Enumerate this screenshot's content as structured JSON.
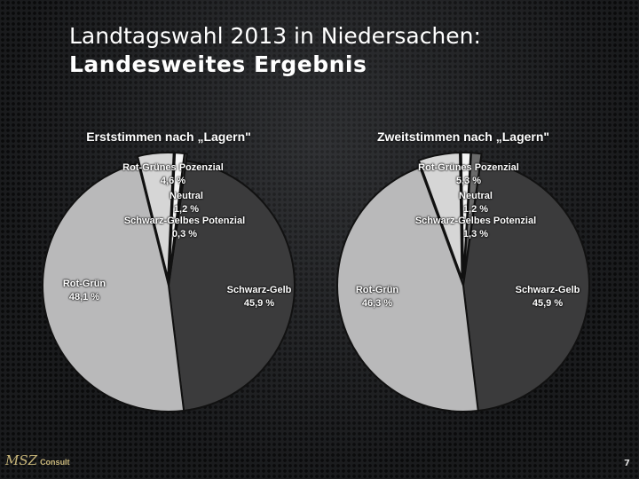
{
  "title_line1": "Landtagswahl 2013 in Niedersachen:",
  "title_line2": "Landesweites Ergebnis",
  "chart_data": [
    {
      "type": "pie",
      "title": "Erststimmen nach „Lagern\"",
      "slices": [
        {
          "label": "Schwarz-Gelb",
          "value": 45.9,
          "value_label": "45,9 %",
          "color": "#3b3b3c"
        },
        {
          "label": "Rot-Grün",
          "value": 48.1,
          "value_label": "48,1 %",
          "color": "#b9b9ba"
        },
        {
          "label": "Rot-Grünes Pozenzial",
          "value": 4.6,
          "value_label": "4,6 %",
          "color": "#d6d6d6"
        },
        {
          "label": "Neutral",
          "value": 1.2,
          "value_label": "1,2 %",
          "color": "#f4f4f4"
        },
        {
          "label": "Schwarz-Gelbes Potenzial",
          "value": 0.3,
          "value_label": "0,3 %",
          "color": "#6a6a6a"
        }
      ]
    },
    {
      "type": "pie",
      "title": "Zweitstimmen nach „Lagern\"",
      "slices": [
        {
          "label": "Schwarz-Gelb",
          "value": 45.9,
          "value_label": "45,9 %",
          "color": "#3b3b3c"
        },
        {
          "label": "Rot-Grün",
          "value": 46.3,
          "value_label": "46,3 %",
          "color": "#b9b9ba"
        },
        {
          "label": "Rot-Grünes Pozenzial",
          "value": 5.3,
          "value_label": "5,3 %",
          "color": "#d6d6d6"
        },
        {
          "label": "Neutral",
          "value": 1.2,
          "value_label": "1,2 %",
          "color": "#f4f4f4"
        },
        {
          "label": "Schwarz-Gelbes Potenzial",
          "value": 1.3,
          "value_label": "1,3 %",
          "color": "#6a6a6a"
        }
      ]
    }
  ],
  "footer": {
    "logo_mark": "MSZ",
    "logo_text": "Consult",
    "page_number": "7"
  }
}
